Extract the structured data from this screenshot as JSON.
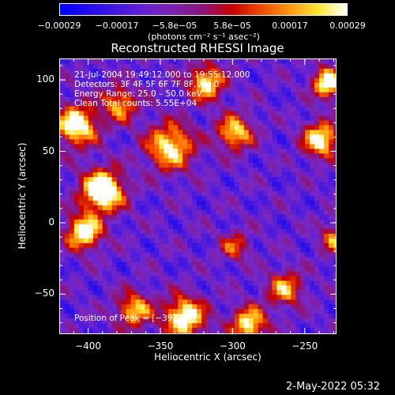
{
  "chart_data": {
    "type": "heatmap",
    "title": "Reconstructed RHESSI Image",
    "xlabel": "Heliocentric X (arcsec)",
    "ylabel": "Heliocentric Y (arcsec)",
    "xlim": [
      -420,
      -228
    ],
    "ylim": [
      -78,
      115
    ],
    "xticks": [
      -400,
      -350,
      -300,
      -250
    ],
    "yticks": [
      -50,
      0,
      50,
      100
    ],
    "xtick_labels": [
      "−400",
      "−350",
      "−300",
      "−250"
    ],
    "ytick_labels": [
      "−50",
      "0",
      "50",
      "100"
    ],
    "colorbar": {
      "ticks": [
        "−0.00029",
        "−0.00017",
        "−5.8e−05",
        "5.8e−05",
        "0.00017",
        "0.00029"
      ],
      "unit": "(photons cm⁻² s⁻¹ asec⁻²)",
      "range": [
        -0.00029,
        0.00029
      ]
    },
    "info_lines": [
      "21-Jul-2004 19:49:12.000 to 19:55:12.000",
      "Detectors: 3F 4F 5F 6F 7F 8F, Att 0",
      "Energy Range: 25.0 – 50.0 keV",
      "Clean    Total counts: 5.55E+04"
    ],
    "peak_label": "Position of Peak = [−392,24]",
    "peak_position": [
      -392,
      24
    ],
    "grid": false
  },
  "footer": {
    "date": "2-May-2022 05:32"
  }
}
